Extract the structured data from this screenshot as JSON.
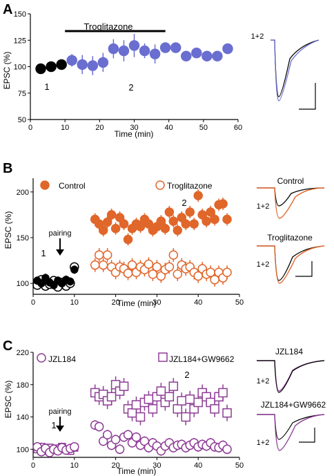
{
  "colors": {
    "black": "#000000",
    "blue": "#6a6ed0",
    "orange": "#e0662a",
    "purple": "#8e3c96",
    "axis": "#000000"
  },
  "chart_data": [
    {
      "panel": "A",
      "type": "scatter",
      "annotation_bar": "Troglitazone",
      "xlabel": "Time (min)",
      "ylabel": "EPSC (%)",
      "xlim": [
        0,
        60
      ],
      "ylim": [
        50,
        150
      ],
      "xticks": [
        0,
        10,
        20,
        30,
        40,
        50,
        60
      ],
      "yticks": [
        50,
        75,
        100,
        125,
        150
      ],
      "point_labels": [
        "1",
        "2"
      ],
      "series": [
        {
          "style": "baseline",
          "points": [
            {
              "x": 3,
              "y": 98,
              "err": 0
            },
            {
              "x": 6,
              "y": 100,
              "err": 0
            },
            {
              "x": 9,
              "y": 102,
              "err": 0
            }
          ]
        },
        {
          "style": "treatment",
          "points": [
            {
              "x": 12,
              "y": 106,
              "err": 6
            },
            {
              "x": 15,
              "y": 102,
              "err": 9
            },
            {
              "x": 18,
              "y": 101,
              "err": 9
            },
            {
              "x": 21,
              "y": 104,
              "err": 9
            },
            {
              "x": 24,
              "y": 117,
              "err": 9
            },
            {
              "x": 27,
              "y": 115,
              "err": 10
            },
            {
              "x": 30,
              "y": 120,
              "err": 11
            },
            {
              "x": 33,
              "y": 115,
              "err": 7
            },
            {
              "x": 36,
              "y": 112,
              "err": 9
            },
            {
              "x": 39,
              "y": 118,
              "err": 5
            },
            {
              "x": 42,
              "y": 118,
              "err": 4
            },
            {
              "x": 45,
              "y": 110,
              "err": 4
            },
            {
              "x": 48,
              "y": 113,
              "err": 4
            },
            {
              "x": 51,
              "y": 110,
              "err": 3
            },
            {
              "x": 54,
              "y": 110,
              "err": 3
            },
            {
              "x": 57,
              "y": 117,
              "err": 5
            }
          ]
        }
      ],
      "traces_label": "1+2"
    },
    {
      "panel": "B",
      "type": "scatter",
      "xlabel": "Time (min)",
      "ylabel": "EPSC (%)",
      "xlim": [
        0,
        50
      ],
      "ylim": [
        88,
        215
      ],
      "xticks": [
        0,
        10,
        20,
        30,
        40,
        50
      ],
      "yticks": [
        100,
        150,
        200
      ],
      "annotation": "pairing",
      "point_labels": [
        "1",
        "2"
      ],
      "legend": [
        "Control",
        "Troglitazone"
      ],
      "series": [
        {
          "name": "Control",
          "filled": true,
          "points": [
            {
              "x": 15,
              "y": 170
            },
            {
              "x": 16,
              "y": 165
            },
            {
              "x": 17,
              "y": 158
            },
            {
              "x": 18,
              "y": 167
            },
            {
              "x": 19,
              "y": 175
            },
            {
              "x": 20,
              "y": 160
            },
            {
              "x": 21,
              "y": 172
            },
            {
              "x": 22,
              "y": 165
            },
            {
              "x": 23,
              "y": 148
            },
            {
              "x": 24,
              "y": 160
            },
            {
              "x": 25,
              "y": 165
            },
            {
              "x": 26,
              "y": 162
            },
            {
              "x": 27,
              "y": 170
            },
            {
              "x": 28,
              "y": 165
            },
            {
              "x": 29,
              "y": 158
            },
            {
              "x": 30,
              "y": 162
            },
            {
              "x": 31,
              "y": 168
            },
            {
              "x": 32,
              "y": 160
            },
            {
              "x": 33,
              "y": 178
            },
            {
              "x": 34,
              "y": 168
            },
            {
              "x": 35,
              "y": 158
            },
            {
              "x": 36,
              "y": 172
            },
            {
              "x": 37,
              "y": 165
            },
            {
              "x": 38,
              "y": 178
            },
            {
              "x": 39,
              "y": 165
            },
            {
              "x": 40,
              "y": 196
            },
            {
              "x": 41,
              "y": 175
            },
            {
              "x": 42,
              "y": 168
            },
            {
              "x": 43,
              "y": 178
            },
            {
              "x": 44,
              "y": 170
            },
            {
              "x": 45,
              "y": 186
            },
            {
              "x": 46,
              "y": 187
            },
            {
              "x": 47,
              "y": 170
            }
          ]
        },
        {
          "name": "Troglitazone",
          "filled": false,
          "points": [
            {
              "x": 15,
              "y": 120
            },
            {
              "x": 16,
              "y": 131
            },
            {
              "x": 17,
              "y": 120
            },
            {
              "x": 18,
              "y": 131
            },
            {
              "x": 19,
              "y": 118
            },
            {
              "x": 20,
              "y": 112
            },
            {
              "x": 21,
              "y": 118
            },
            {
              "x": 22,
              "y": 116
            },
            {
              "x": 23,
              "y": 111
            },
            {
              "x": 24,
              "y": 120
            },
            {
              "x": 25,
              "y": 112
            },
            {
              "x": 26,
              "y": 118
            },
            {
              "x": 27,
              "y": 115
            },
            {
              "x": 28,
              "y": 121
            },
            {
              "x": 29,
              "y": 110
            },
            {
              "x": 30,
              "y": 118
            },
            {
              "x": 31,
              "y": 108
            },
            {
              "x": 32,
              "y": 115
            },
            {
              "x": 33,
              "y": 118
            },
            {
              "x": 34,
              "y": 131
            },
            {
              "x": 35,
              "y": 110
            },
            {
              "x": 36,
              "y": 120
            },
            {
              "x": 37,
              "y": 116
            },
            {
              "x": 38,
              "y": 118
            },
            {
              "x": 39,
              "y": 112
            },
            {
              "x": 40,
              "y": 108
            },
            {
              "x": 41,
              "y": 116
            },
            {
              "x": 42,
              "y": 110
            },
            {
              "x": 43,
              "y": 112
            },
            {
              "x": 44,
              "y": 104
            },
            {
              "x": 45,
              "y": 112
            },
            {
              "x": 46,
              "y": 106
            },
            {
              "x": 47,
              "y": 112
            }
          ]
        },
        {
          "style": "baseline-filled",
          "points": [
            {
              "x": 1,
              "y": 103
            },
            {
              "x": 2,
              "y": 100
            },
            {
              "x": 3,
              "y": 106
            },
            {
              "x": 4,
              "y": 101
            },
            {
              "x": 5,
              "y": 98
            },
            {
              "x": 6,
              "y": 103
            },
            {
              "x": 7,
              "y": 100
            },
            {
              "x": 8,
              "y": 104
            },
            {
              "x": 9,
              "y": 102
            },
            {
              "x": 10,
              "y": 115
            }
          ]
        },
        {
          "style": "baseline-open",
          "points": [
            {
              "x": 1,
              "y": 98
            },
            {
              "x": 2,
              "y": 104
            },
            {
              "x": 3,
              "y": 97
            },
            {
              "x": 4,
              "y": 99
            },
            {
              "x": 5,
              "y": 103
            },
            {
              "x": 6,
              "y": 96
            },
            {
              "x": 7,
              "y": 101
            },
            {
              "x": 8,
              "y": 97
            },
            {
              "x": 9,
              "y": 100
            },
            {
              "x": 10,
              "y": 118
            }
          ]
        }
      ],
      "traces_labels": [
        "Control",
        "Troglitazone",
        "1+2",
        "1+2"
      ]
    },
    {
      "panel": "C",
      "type": "scatter",
      "xlabel": "Time (min)",
      "ylabel": "EPSC (%)",
      "xlim": [
        0,
        50
      ],
      "ylim": [
        90,
        220
      ],
      "xticks": [
        0,
        10,
        20,
        30,
        40,
        50
      ],
      "yticks": [
        100,
        140,
        180,
        220
      ],
      "annotation": "pairing",
      "point_labels": [
        "1",
        "2"
      ],
      "legend": [
        "JZL184",
        "JZL184+GW9662"
      ],
      "series": [
        {
          "name": "JZL184+GW9662",
          "marker": "square",
          "points": [
            {
              "x": 15,
              "y": 170
            },
            {
              "x": 16,
              "y": 165
            },
            {
              "x": 17,
              "y": 168
            },
            {
              "x": 18,
              "y": 160
            },
            {
              "x": 19,
              "y": 165
            },
            {
              "x": 20,
              "y": 180
            },
            {
              "x": 21,
              "y": 172
            },
            {
              "x": 22,
              "y": 178
            },
            {
              "x": 23,
              "y": 150
            },
            {
              "x": 24,
              "y": 145
            },
            {
              "x": 25,
              "y": 155
            },
            {
              "x": 26,
              "y": 140
            },
            {
              "x": 27,
              "y": 158
            },
            {
              "x": 28,
              "y": 162
            },
            {
              "x": 29,
              "y": 150
            },
            {
              "x": 30,
              "y": 165
            },
            {
              "x": 31,
              "y": 172
            },
            {
              "x": 32,
              "y": 158
            },
            {
              "x": 33,
              "y": 165
            },
            {
              "x": 34,
              "y": 178
            },
            {
              "x": 35,
              "y": 150
            },
            {
              "x": 36,
              "y": 160
            },
            {
              "x": 37,
              "y": 140
            },
            {
              "x": 38,
              "y": 162
            },
            {
              "x": 39,
              "y": 150
            },
            {
              "x": 40,
              "y": 158
            },
            {
              "x": 41,
              "y": 170
            },
            {
              "x": 42,
              "y": 165
            },
            {
              "x": 43,
              "y": 158
            },
            {
              "x": 44,
              "y": 150
            },
            {
              "x": 45,
              "y": 165
            },
            {
              "x": 46,
              "y": 170
            },
            {
              "x": 47,
              "y": 145
            }
          ]
        },
        {
          "name": "JZL184",
          "marker": "circle",
          "points": [
            {
              "x": 15,
              "y": 130
            },
            {
              "x": 16,
              "y": 128
            },
            {
              "x": 17,
              "y": 110
            },
            {
              "x": 18,
              "y": 118
            },
            {
              "x": 19,
              "y": 105
            },
            {
              "x": 20,
              "y": 112
            },
            {
              "x": 21,
              "y": 100
            },
            {
              "x": 22,
              "y": 115
            },
            {
              "x": 23,
              "y": 118
            },
            {
              "x": 24,
              "y": 108
            },
            {
              "x": 25,
              "y": 115
            },
            {
              "x": 26,
              "y": 105
            },
            {
              "x": 27,
              "y": 110
            },
            {
              "x": 28,
              "y": 102
            },
            {
              "x": 29,
              "y": 108
            },
            {
              "x": 30,
              "y": 104
            },
            {
              "x": 31,
              "y": 98
            },
            {
              "x": 32,
              "y": 104
            },
            {
              "x": 33,
              "y": 108
            },
            {
              "x": 34,
              "y": 102
            },
            {
              "x": 35,
              "y": 105
            },
            {
              "x": 36,
              "y": 106
            },
            {
              "x": 37,
              "y": 102
            },
            {
              "x": 38,
              "y": 105
            },
            {
              "x": 39,
              "y": 108
            },
            {
              "x": 40,
              "y": 103
            },
            {
              "x": 41,
              "y": 106
            },
            {
              "x": 42,
              "y": 104
            },
            {
              "x": 43,
              "y": 108
            },
            {
              "x": 44,
              "y": 103
            },
            {
              "x": 45,
              "y": 102
            },
            {
              "x": 46,
              "y": 105
            },
            {
              "x": 47,
              "y": 100
            }
          ]
        },
        {
          "style": "baseline-circles",
          "points": [
            {
              "x": 1,
              "y": 103
            },
            {
              "x": 2,
              "y": 97
            },
            {
              "x": 3,
              "y": 101
            },
            {
              "x": 4,
              "y": 96
            },
            {
              "x": 5,
              "y": 100
            },
            {
              "x": 6,
              "y": 98
            },
            {
              "x": 7,
              "y": 102
            },
            {
              "x": 8,
              "y": 99
            },
            {
              "x": 9,
              "y": 101
            },
            {
              "x": 10,
              "y": 103
            }
          ]
        },
        {
          "style": "baseline-squares",
          "points": [
            {
              "x": 1,
              "y": 100
            },
            {
              "x": 2,
              "y": 103
            },
            {
              "x": 3,
              "y": 98
            },
            {
              "x": 4,
              "y": 102
            },
            {
              "x": 5,
              "y": 99
            },
            {
              "x": 6,
              "y": 101
            },
            {
              "x": 7,
              "y": 103
            },
            {
              "x": 8,
              "y": 100
            },
            {
              "x": 9,
              "y": 98
            },
            {
              "x": 10,
              "y": 102
            }
          ]
        }
      ],
      "traces_labels": [
        "JZL184",
        "JZL184+GW9662",
        "1+2",
        "1+2"
      ]
    }
  ],
  "panel_letters": [
    "A",
    "B",
    "C"
  ]
}
